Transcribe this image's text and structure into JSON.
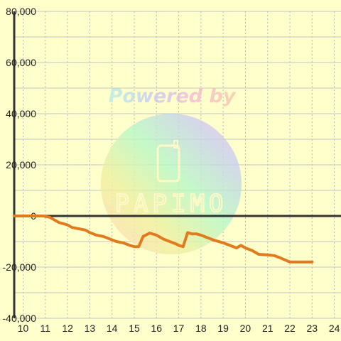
{
  "chart_data": {
    "type": "line",
    "title": "",
    "xlabel": "",
    "ylabel": "",
    "xlim": [
      9.6,
      24.3
    ],
    "ylim": [
      -40000,
      80000
    ],
    "x_ticks": [
      10,
      11,
      12,
      13,
      14,
      15,
      16,
      17,
      18,
      19,
      20,
      21,
      22,
      23,
      24
    ],
    "y_ticks": [
      80000,
      60000,
      40000,
      20000,
      0,
      -20000,
      -40000
    ],
    "y_tick_labels": [
      "80,000",
      "60,000",
      "40,000",
      "20,000",
      "0",
      "-20,000",
      "-40,000"
    ],
    "grid": true,
    "legend": "none",
    "series": [
      {
        "color": "#e07b1f",
        "points": [
          [
            9.6,
            0
          ],
          [
            10.0,
            0
          ],
          [
            10.5,
            0
          ],
          [
            10.9,
            0
          ],
          [
            11.2,
            -500
          ],
          [
            11.4,
            -1500
          ],
          [
            11.6,
            -2500
          ],
          [
            11.8,
            -3000
          ],
          [
            12.0,
            -3500
          ],
          [
            12.2,
            -4500
          ],
          [
            12.5,
            -5000
          ],
          [
            12.8,
            -5500
          ],
          [
            13.0,
            -6500
          ],
          [
            13.3,
            -7500
          ],
          [
            13.6,
            -8000
          ],
          [
            13.9,
            -9000
          ],
          [
            14.2,
            -10000
          ],
          [
            14.5,
            -10500
          ],
          [
            14.8,
            -11500
          ],
          [
            15.0,
            -12000
          ],
          [
            15.2,
            -12000
          ],
          [
            15.3,
            -10000
          ],
          [
            15.4,
            -8000
          ],
          [
            15.7,
            -6700
          ],
          [
            16.0,
            -7500
          ],
          [
            16.3,
            -9000
          ],
          [
            16.6,
            -10000
          ],
          [
            16.9,
            -11000
          ],
          [
            17.0,
            -11500
          ],
          [
            17.2,
            -12000
          ],
          [
            17.4,
            -6500
          ],
          [
            17.6,
            -7000
          ],
          [
            17.8,
            -7000
          ],
          [
            18.0,
            -7500
          ],
          [
            18.3,
            -8500
          ],
          [
            18.6,
            -9500
          ],
          [
            19.0,
            -10500
          ],
          [
            19.3,
            -11500
          ],
          [
            19.6,
            -12500
          ],
          [
            19.8,
            -11500
          ],
          [
            20.0,
            -12500
          ],
          [
            20.3,
            -13500
          ],
          [
            20.6,
            -15000
          ],
          [
            21.0,
            -15200
          ],
          [
            21.3,
            -15500
          ],
          [
            21.6,
            -16500
          ],
          [
            22.0,
            -18000
          ],
          [
            22.5,
            -18000
          ],
          [
            23.0,
            -18000
          ]
        ]
      }
    ]
  },
  "watermark": {
    "text": "Powered by",
    "logo_text": "PAPIMO"
  }
}
